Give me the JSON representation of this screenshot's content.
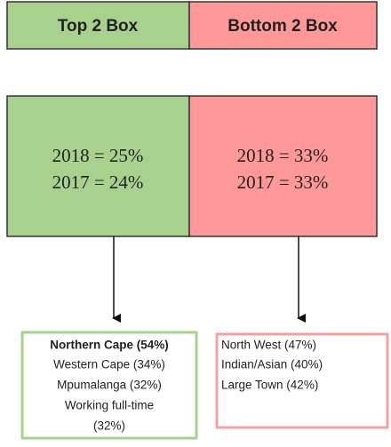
{
  "header": {
    "left": "Top 2 Box",
    "right": "Bottom 2 Box"
  },
  "boxes": [
    {
      "lines": [
        "2018 = 25%",
        "2017 = 24%"
      ]
    },
    {
      "lines": [
        "2018 = 33%",
        "2017 = 33%"
      ]
    }
  ],
  "lists": [
    {
      "items": [
        "Northern Cape (54%)",
        "Western Cape (34%)",
        "Mpumalanga (32%)",
        "Working full-time",
        "(32%)"
      ]
    },
    {
      "items": [
        "North West (47%)",
        "Indian/Asian (40%)",
        "Large Town (42%)"
      ]
    }
  ]
}
